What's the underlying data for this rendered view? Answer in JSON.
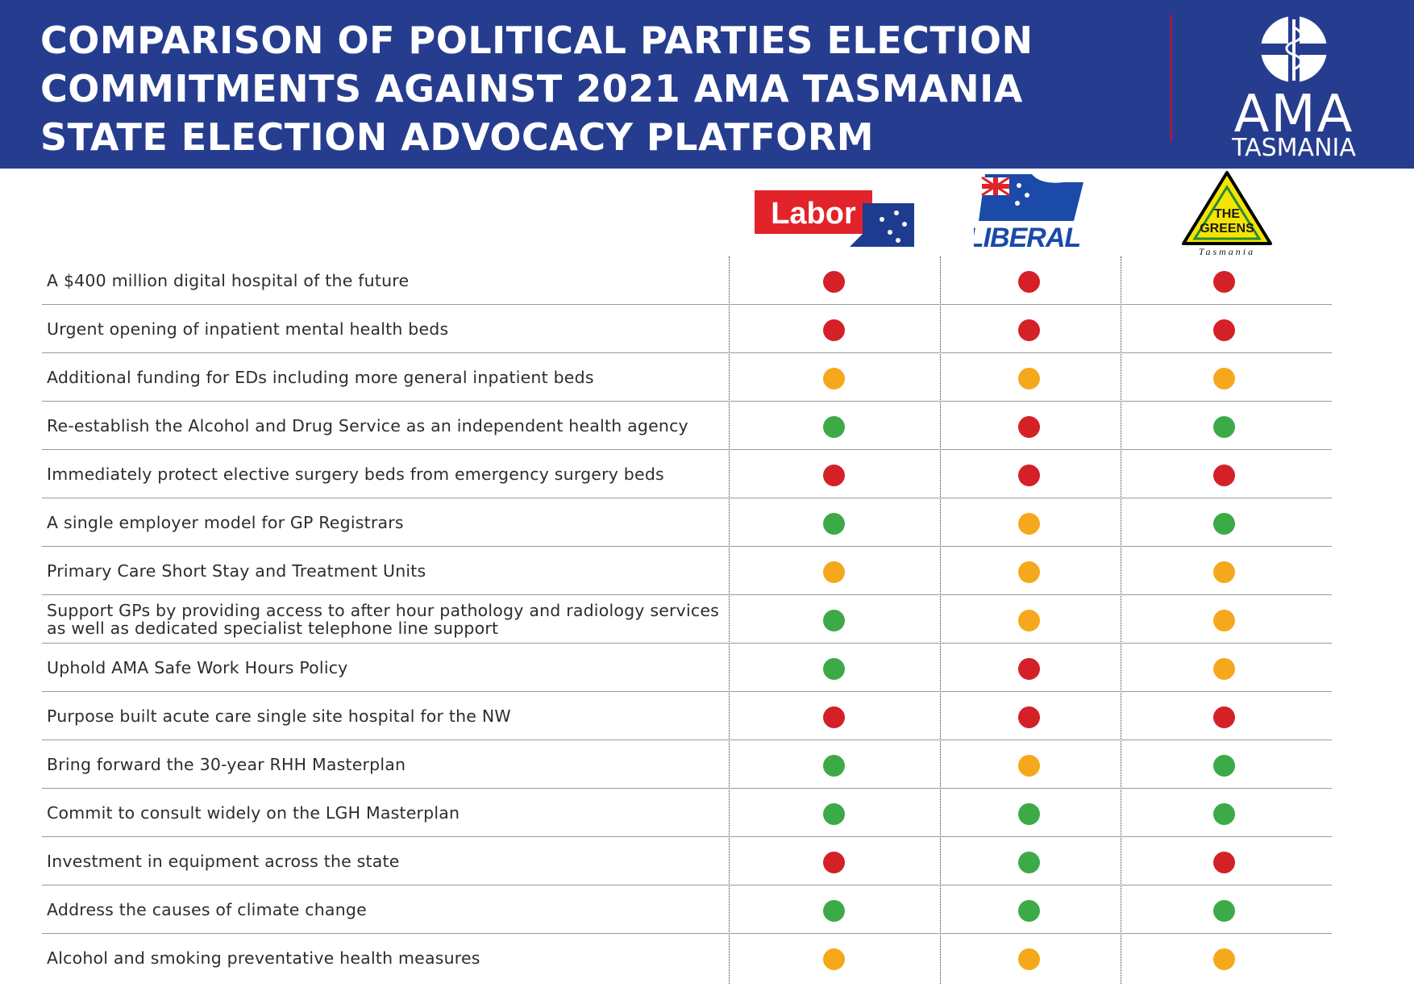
{
  "header": {
    "title_lines": [
      "COMPARISON OF POLITICAL PARTIES ELECTION",
      "COMMITMENTS AGAINST 2021 AMA TASMANIA",
      "STATE ELECTION ADVOCACY PLATFORM"
    ],
    "logo": {
      "name": "AMA",
      "subtitle": "TASMANIA"
    }
  },
  "parties": [
    {
      "name": "Labor",
      "logo_text": "Labor"
    },
    {
      "name": "Liberal",
      "logo_text": "LIBERAL"
    },
    {
      "name": "The Greens",
      "logo_text": [
        "THE",
        "GREENS"
      ],
      "logo_subtitle": "Tasmania"
    }
  ],
  "status_colors": {
    "red": "#d42027",
    "amber": "#f6a81c",
    "green": "#3daa48"
  },
  "commitments": [
    {
      "text": "A $400 million digital hospital of the future",
      "ratings": [
        "red",
        "red",
        "red"
      ]
    },
    {
      "text": "Urgent opening of inpatient mental health beds",
      "ratings": [
        "red",
        "red",
        "red"
      ]
    },
    {
      "text": "Additional funding for EDs including more general inpatient beds",
      "ratings": [
        "amber",
        "amber",
        "amber"
      ]
    },
    {
      "text": "Re-establish the Alcohol and Drug Service as an independent health agency",
      "ratings": [
        "green",
        "red",
        "green"
      ]
    },
    {
      "text": "Immediately protect elective surgery beds from emergency surgery beds",
      "ratings": [
        "red",
        "red",
        "red"
      ]
    },
    {
      "text": "A single employer model for GP Registrars",
      "ratings": [
        "green",
        "amber",
        "green"
      ]
    },
    {
      "text": "Primary Care Short Stay and Treatment Units",
      "ratings": [
        "amber",
        "amber",
        "amber"
      ]
    },
    {
      "text": "Support GPs by providing access to after hour pathology and radiology services as well as dedicated specialist telephone line support",
      "ratings": [
        "green",
        "amber",
        "amber"
      ]
    },
    {
      "text": "Uphold AMA Safe Work Hours Policy",
      "ratings": [
        "green",
        "red",
        "amber"
      ]
    },
    {
      "text": "Purpose built acute care single site hospital for the NW",
      "ratings": [
        "red",
        "red",
        "red"
      ]
    },
    {
      "text": "Bring forward the 30-year RHH Masterplan",
      "ratings": [
        "green",
        "amber",
        "green"
      ]
    },
    {
      "text": "Commit to consult widely on the LGH Masterplan",
      "ratings": [
        "green",
        "green",
        "green"
      ]
    },
    {
      "text": "Investment in equipment across the state",
      "ratings": [
        "red",
        "green",
        "red"
      ]
    },
    {
      "text": "Address the causes of climate change",
      "ratings": [
        "green",
        "green",
        "green"
      ]
    },
    {
      "text": "Alcohol and smoking preventative health measures",
      "ratings": [
        "amber",
        "amber",
        "amber"
      ]
    }
  ]
}
